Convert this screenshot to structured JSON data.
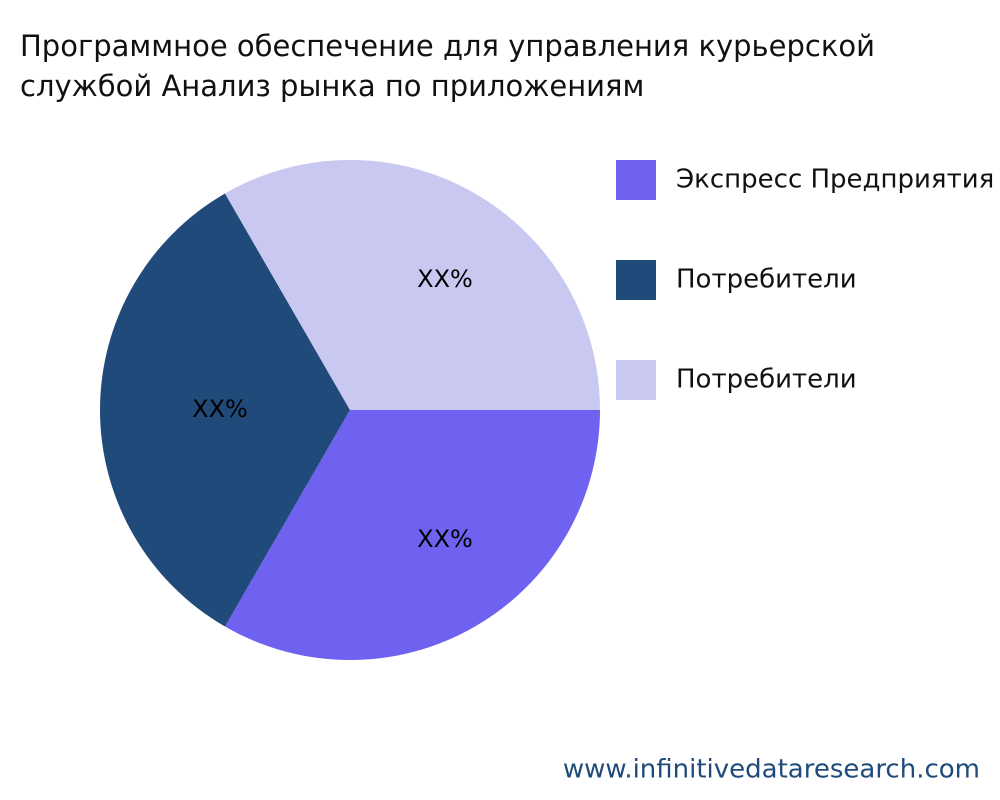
{
  "chart_data": {
    "type": "pie",
    "title": [
      "Программное обеспечение для управления курьерской",
      "службой Анализ рынка по приложениям"
    ],
    "categories": [
      "Экспресс Предприятия",
      "Потребители",
      "Потребители"
    ],
    "values": [
      33.3,
      33.3,
      33.3
    ],
    "value_labels": [
      "XX%",
      "XX%",
      "XX%"
    ],
    "colors": [
      "#6f62f0",
      "#1f4a7a",
      "#c8c8f0"
    ],
    "legend": "right"
  },
  "footer": "www.infinitivedataresearch.com"
}
